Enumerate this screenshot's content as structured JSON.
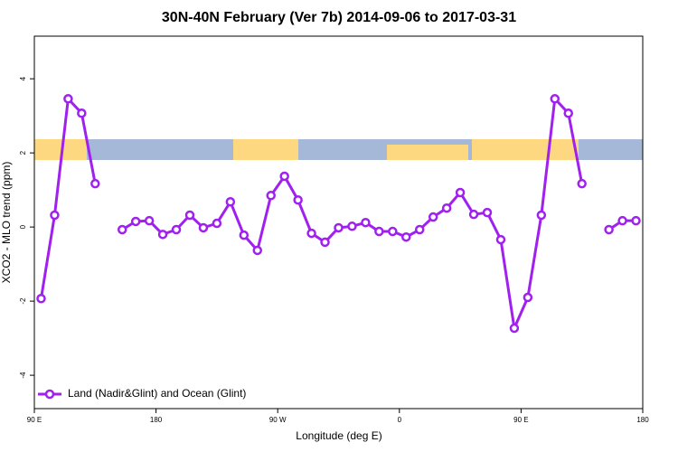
{
  "chart_data": {
    "type": "line",
    "title": "30N-40N February (Ver 7b)   2014-09-06 to 2017-03-31",
    "x_label": "Longitude (deg E)",
    "y_label": "XCO2 - MLO trend (ppm)",
    "x": [
      95,
      105,
      115,
      125,
      135,
      145,
      155,
      165,
      175,
      185,
      195,
      205,
      215,
      225,
      235,
      245,
      255,
      265,
      275,
      285,
      295,
      305,
      315,
      325,
      335,
      345,
      355,
      365,
      375,
      385,
      395,
      405,
      415,
      425,
      435,
      445,
      455,
      465,
      475,
      485,
      495,
      505,
      515,
      525,
      535
    ],
    "series": [
      {
        "name": "Land (Nadir&Glint) and Ocean (Glint)",
        "color": "#a020f0",
        "values": [
          -1.93,
          0.32,
          3.46,
          3.07,
          1.17,
          null,
          -0.07,
          0.15,
          0.17,
          -0.2,
          -0.07,
          0.32,
          -0.02,
          0.1,
          0.68,
          -0.22,
          -0.63,
          0.85,
          1.37,
          0.73,
          -0.17,
          -0.41,
          -0.02,
          0.02,
          0.12,
          -0.12,
          -0.12,
          -0.27,
          -0.07,
          0.27,
          0.51,
          0.93,
          0.34,
          0.39,
          -0.34,
          -2.73,
          -1.9,
          0.32,
          3.46,
          3.07,
          1.17,
          null,
          -0.07,
          0.17,
          0.17
        ]
      }
    ],
    "xlim": [
      90,
      540
    ],
    "xticks": [
      {
        "value": 90,
        "label": "90 E"
      },
      {
        "value": 180,
        "label": "180"
      },
      {
        "value": 270,
        "label": "90 W"
      },
      {
        "value": 360,
        "label": "0"
      },
      {
        "value": 450,
        "label": "90 E"
      },
      {
        "value": 540,
        "label": "180"
      }
    ],
    "ylim": [
      -4.9,
      5.15
    ],
    "yticks": [
      -4,
      -2,
      0,
      2,
      4
    ],
    "legend": "bottom-left"
  }
}
